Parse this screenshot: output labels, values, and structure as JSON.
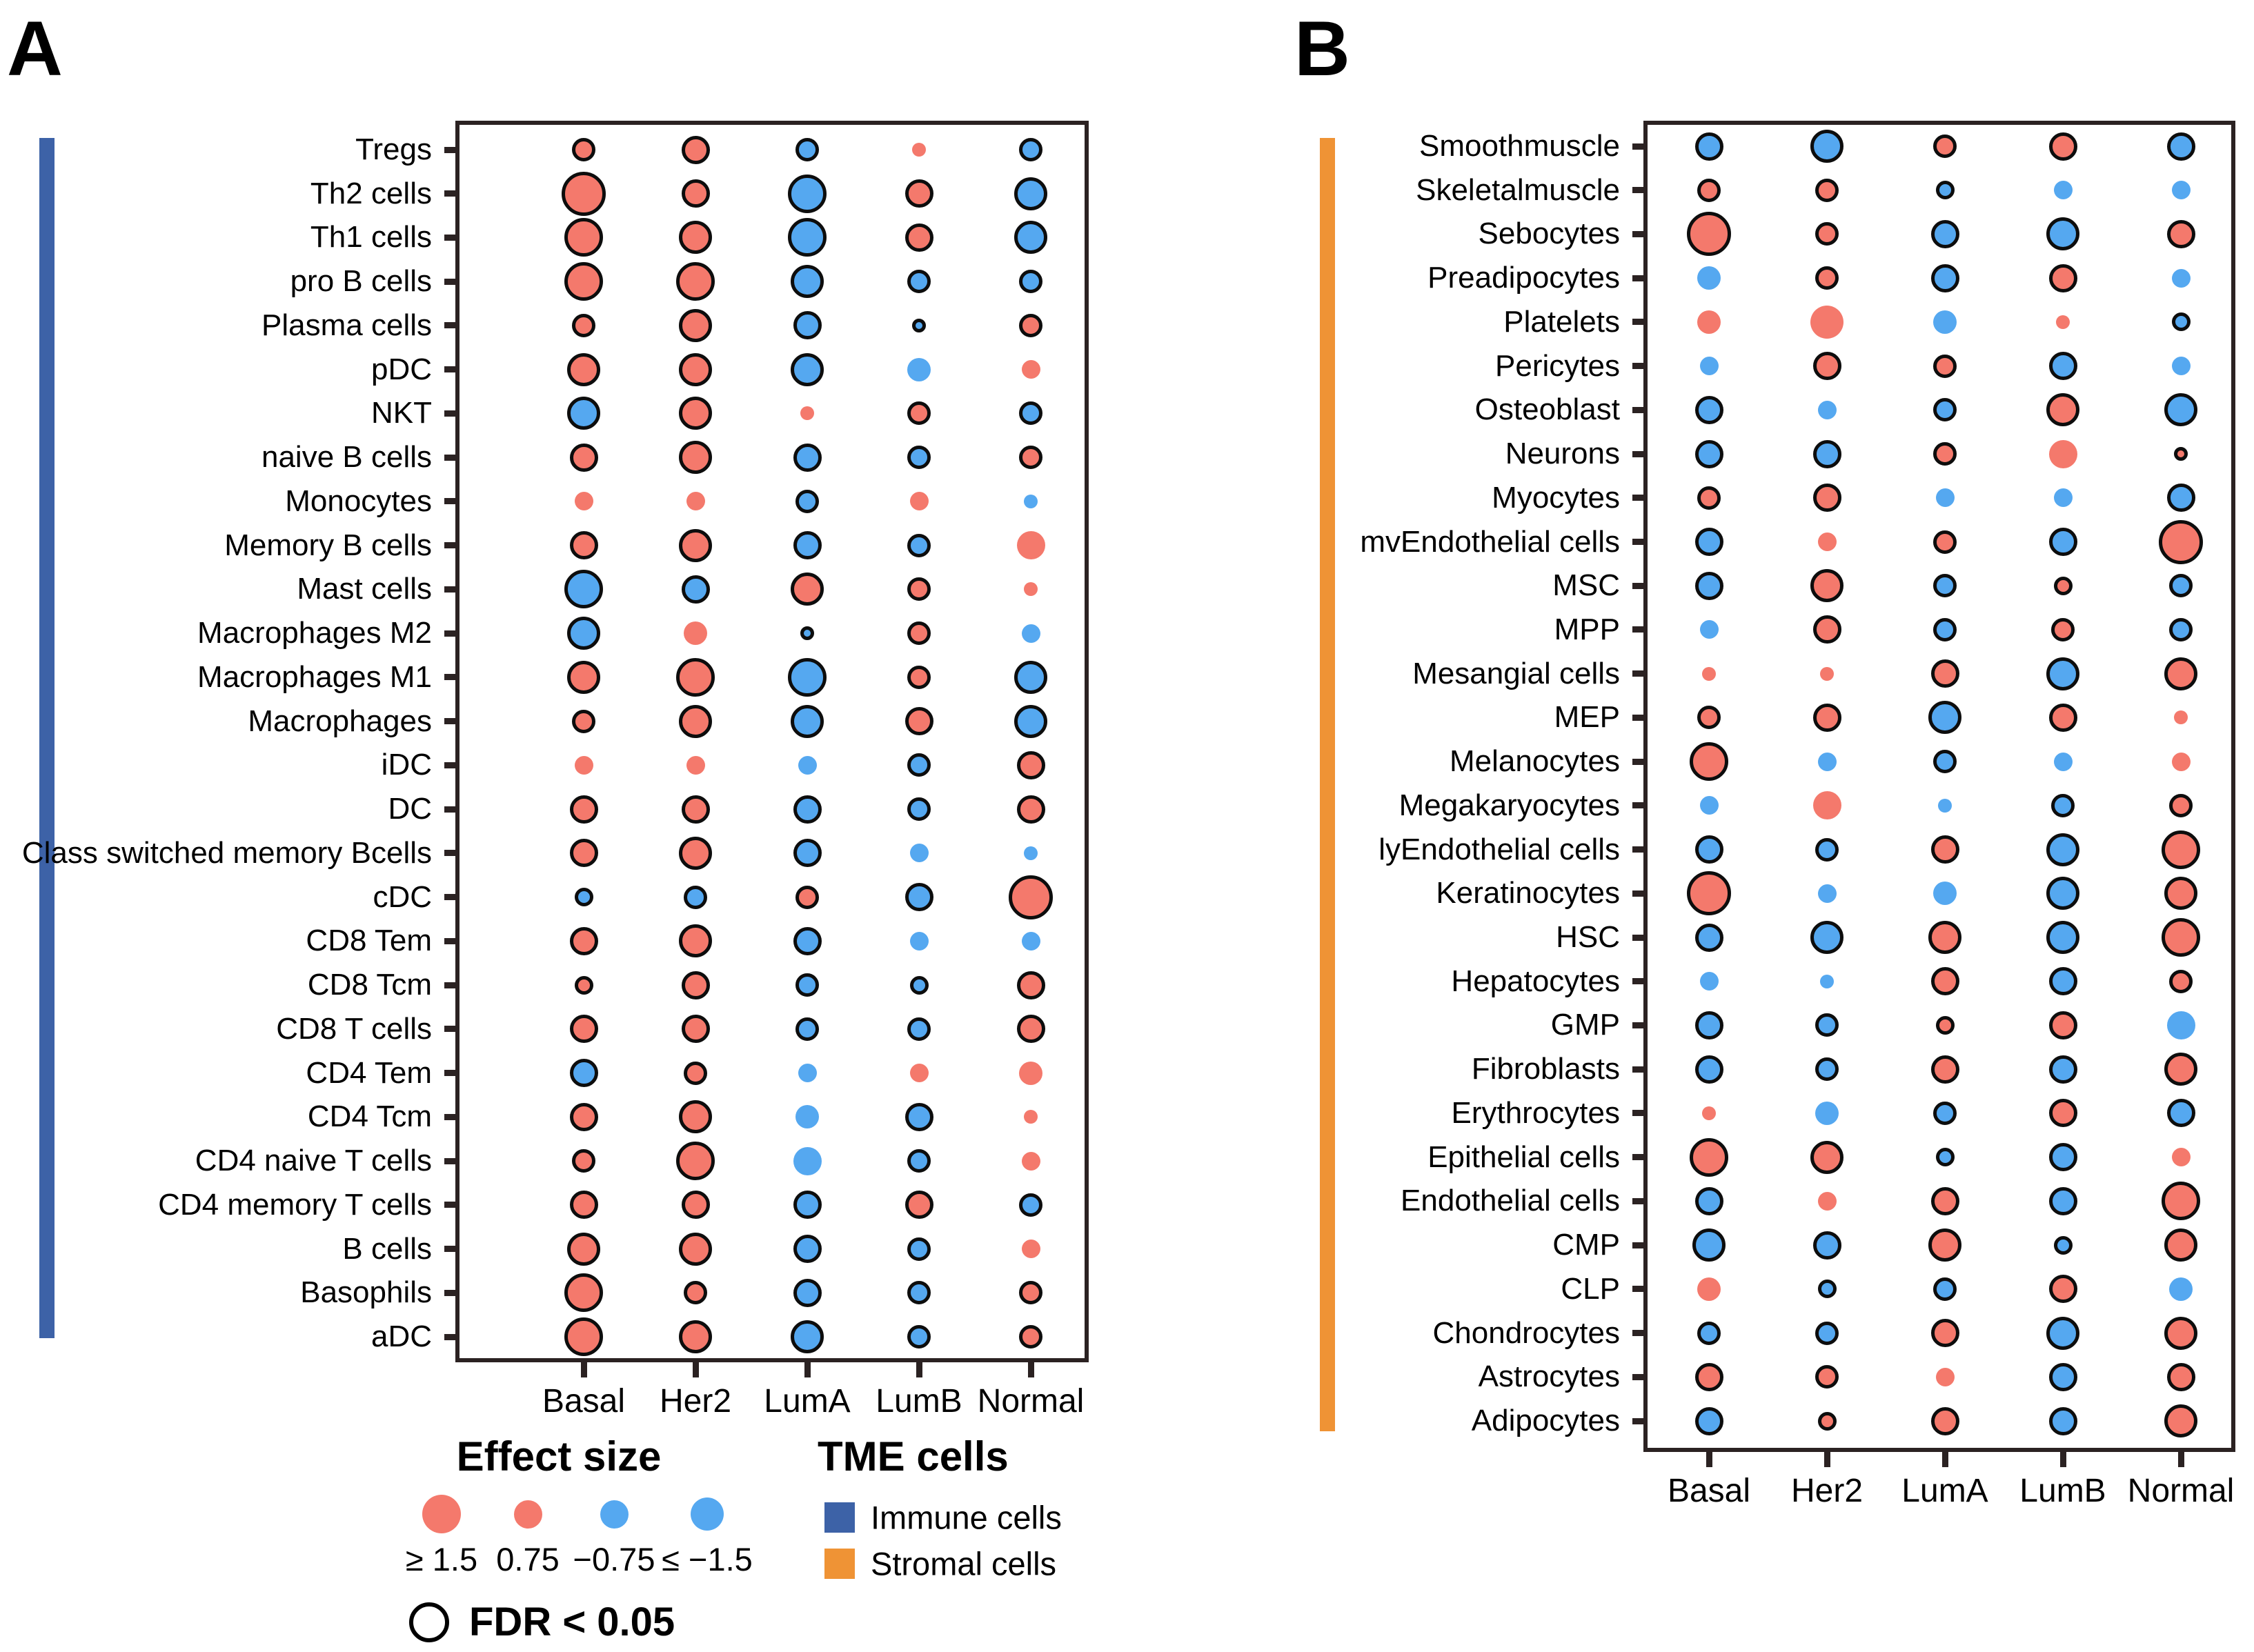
{
  "panels": {
    "a_letter": "A",
    "b_letter": "B"
  },
  "colors": {
    "positive": "#F4796C",
    "negative": "#55A8F0",
    "immune": "#3D62A7",
    "stromal": "#EF9335",
    "outline": "#0D0D0D",
    "frame": "#2B2222"
  },
  "legend": {
    "effect_size_title": "Effect size",
    "effect_items": [
      {
        "label": "≥ 1.5",
        "color": "positive",
        "size": 3.5
      },
      {
        "label": "0.75",
        "color": "positive",
        "size": 2.5
      },
      {
        "label": "−0.75",
        "color": "negative",
        "size": 2.5
      },
      {
        "label": "≤ −1.5",
        "color": "negative",
        "size": 3
      }
    ],
    "tme_title": "TME cells",
    "tme_items": [
      {
        "label": "Immune cells",
        "swatch": "immune"
      },
      {
        "label": "Stromal cells",
        "swatch": "stromal"
      }
    ],
    "fdr_label": "FDR < 0.05"
  },
  "chart_data": [
    {
      "type": "heatmap",
      "panel": "A",
      "group": "Immune cells",
      "description": "Bubble matrix: dot color = effect size sign (red positive, blue negative), dot size = |effect size| (1≈0.4, 2≈0.75, 3≈1.1, 4≥1.5), black outline = FDR < 0.05",
      "columns": [
        "Basal",
        "Her2",
        "LumA",
        "LumB",
        "Normal"
      ],
      "rows": [
        "Tregs",
        "Th2 cells",
        "Th1 cells",
        "pro B cells",
        "Plasma cells",
        "pDC",
        "NKT",
        "naive B cells",
        "Monocytes",
        "Memory B cells",
        "Mast cells",
        "Macrophages M2",
        "Macrophages M1",
        "Macrophages",
        "iDC",
        "DC",
        "Class switched memory Bcells",
        "cDC",
        "CD8 Tem",
        "CD8 Tcm",
        "CD8 T cells",
        "CD4 Tem",
        "CD4 Tcm",
        "CD4 naive T cells",
        "CD4 memory T cells",
        "B cells",
        "Basophils",
        "aDC"
      ],
      "dots": [
        [
          "r2o",
          "r2.5o",
          "b2o",
          "r1n",
          "b2o"
        ],
        [
          "r4o",
          "r2.5o",
          "b3.5o",
          "r2.5o",
          "b3o"
        ],
        [
          "r3.5o",
          "r3o",
          "b3.5o",
          "r2.5o",
          "b3o"
        ],
        [
          "r3.5o",
          "r3.5o",
          "b3o",
          "b2o",
          "b2o"
        ],
        [
          "r2o",
          "r3o",
          "b2.5o",
          "b1o",
          "r2o"
        ],
        [
          "r3o",
          "r3o",
          "b3o",
          "b2n",
          "r1.5n"
        ],
        [
          "b3o",
          "r3o",
          "r1n",
          "r2o",
          "b2o"
        ],
        [
          "r2.5o",
          "r3o",
          "b2.5o",
          "b2o",
          "r2o"
        ],
        [
          "r1.5n",
          "r1.5n",
          "b2o",
          "r1.5n",
          "b1n"
        ],
        [
          "r2.5o",
          "r3o",
          "b2.5o",
          "b2o",
          "r2.5n"
        ],
        [
          "b3.5o",
          "b2.5o",
          "r3o",
          "r2o",
          "r1n"
        ],
        [
          "b3o",
          "r2n",
          "b1o",
          "r2o",
          "b1.5n"
        ],
        [
          "r3o",
          "r3.5o",
          "b3.5o",
          "r2o",
          "b3o"
        ],
        [
          "r2o",
          "r3o",
          "b3o",
          "r2.5o",
          "b3o"
        ],
        [
          "r1.5n",
          "r1.5n",
          "b1.5n",
          "b2o",
          "r2.5o"
        ],
        [
          "r2.5o",
          "r2.5o",
          "b2.5o",
          "b2o",
          "r2.5o"
        ],
        [
          "r2.5o",
          "r3o",
          "b2.5o",
          "b1.5n",
          "b1n"
        ],
        [
          "b1.5o",
          "b2o",
          "r2o",
          "b2.5o",
          "r4o"
        ],
        [
          "r2.5o",
          "r3o",
          "b2.5o",
          "b1.5n",
          "b1.5n"
        ],
        [
          "r1.5o",
          "r2.5o",
          "b2o",
          "b1.5o",
          "r2.5o"
        ],
        [
          "r2.5o",
          "r2.5o",
          "b2o",
          "b2o",
          "r2.5o"
        ],
        [
          "b2.5o",
          "r2o",
          "b1.5n",
          "r1.5n",
          "r2n"
        ],
        [
          "r2.5o",
          "r3o",
          "b2n",
          "b2.5o",
          "r1n"
        ],
        [
          "r2o",
          "r3.5o",
          "b2.5n",
          "b2o",
          "r1.5n"
        ],
        [
          "r2.5o",
          "r2.5o",
          "b2.5o",
          "r2.5o",
          "b2o"
        ],
        [
          "r3o",
          "r3o",
          "b2.5o",
          "b2o",
          "r1.5n"
        ],
        [
          "r3.5o",
          "r2o",
          "b2.5o",
          "b2o",
          "r2o"
        ],
        [
          "r3.5o",
          "r3o",
          "b3o",
          "b2o",
          "r2o"
        ]
      ]
    },
    {
      "type": "heatmap",
      "panel": "B",
      "group": "Stromal cells",
      "description": "Bubble matrix: dot color = effect size sign (red positive, blue negative), dot size = |effect size|, black outline = FDR < 0.05",
      "columns": [
        "Basal",
        "Her2",
        "LumA",
        "LumB",
        "Normal"
      ],
      "rows": [
        "Smoothmuscle",
        "Skeletalmuscle",
        "Sebocytes",
        "Preadipocytes",
        "Platelets",
        "Pericytes",
        "Osteoblast",
        "Neurons",
        "Myocytes",
        "mvEndothelial cells",
        "MSC",
        "MPP",
        "Mesangial cells",
        "MEP",
        "Melanocytes",
        "Megakaryocytes",
        "lyEndothelial cells",
        "Keratinocytes",
        "HSC",
        "Hepatocytes",
        "GMP",
        "Fibroblasts",
        "Erythrocytes",
        "Epithelial cells",
        "Endothelial cells",
        "CMP",
        "CLP",
        "Chondrocytes",
        "Astrocytes",
        "Adipocytes"
      ],
      "dots": [
        [
          "b2.5o",
          "b3o",
          "r2o",
          "r2.5o",
          "b2.5o"
        ],
        [
          "r2o",
          "r2o",
          "b1.5o",
          "b1.5n",
          "b1.5n"
        ],
        [
          "r4o",
          "r2o",
          "b2.5o",
          "b3o",
          "r2.5o"
        ],
        [
          "b2n",
          "r2o",
          "b2.5o",
          "r2.5o",
          "b1.5n"
        ],
        [
          "r2n",
          "r3n",
          "b2n",
          "r1n",
          "b1.5o"
        ],
        [
          "b1.5n",
          "r2.5o",
          "r2o",
          "b2.5o",
          "b1.5n"
        ],
        [
          "b2.5o",
          "b1.5n",
          "b2o",
          "r3o",
          "b3o"
        ],
        [
          "b2.5o",
          "b2.5o",
          "r2o",
          "r2.5n",
          "r1o"
        ],
        [
          "r2o",
          "r2.5o",
          "b1.5n",
          "b1.5n",
          "b2.5o"
        ],
        [
          "b2.5o",
          "r1.5n",
          "r2o",
          "b2.5o",
          "r4o"
        ],
        [
          "b2.5o",
          "r3o",
          "b2o",
          "r1.5o",
          "b2o"
        ],
        [
          "b1.5n",
          "r2.5o",
          "b2o",
          "r2o",
          "b2o"
        ],
        [
          "r1n",
          "r1n",
          "r2.5o",
          "b3o",
          "r3o"
        ],
        [
          "r2o",
          "r2.5o",
          "b3o",
          "r2.5o",
          "r1n"
        ],
        [
          "r3.5o",
          "b1.5n",
          "b2o",
          "b1.5n",
          "r1.5n"
        ],
        [
          "b1.5n",
          "r2.5n",
          "b1n",
          "b2o",
          "r2o"
        ],
        [
          "b2.5o",
          "b2o",
          "r2.5o",
          "b3o",
          "r3.5o"
        ],
        [
          "r4o",
          "b1.5n",
          "b2n",
          "b3o",
          "r3o"
        ],
        [
          "b2.5o",
          "b3o",
          "r3o",
          "b3o",
          "r3.5o"
        ],
        [
          "b1.5n",
          "b1n",
          "r2.5o",
          "b2.5o",
          "r2o"
        ],
        [
          "b2.5o",
          "b2o",
          "r1.5o",
          "r2.5o",
          "b2.5n"
        ],
        [
          "b2.5o",
          "b2o",
          "r2.5o",
          "b2.5o",
          "r3o"
        ],
        [
          "r1n",
          "b2n",
          "b2o",
          "r2.5o",
          "b2.5o"
        ],
        [
          "r3.5o",
          "r3o",
          "b1.5o",
          "b2.5o",
          "r1.5n"
        ],
        [
          "b2.5o",
          "r1.5n",
          "r2.5o",
          "b2.5o",
          "r3.5o"
        ],
        [
          "b3o",
          "b2.5o",
          "r3o",
          "b1.5o",
          "r3o"
        ],
        [
          "r2n",
          "b1.5o",
          "b2o",
          "r2.5o",
          "b2n"
        ],
        [
          "b2o",
          "b2o",
          "r2.5o",
          "b3o",
          "r3o"
        ],
        [
          "r2.5o",
          "r2o",
          "r1.5n",
          "b2.5o",
          "r2.5o"
        ],
        [
          "b2.5o",
          "r1.5o",
          "r2.5o",
          "b2.5o",
          "r3o"
        ]
      ]
    }
  ]
}
